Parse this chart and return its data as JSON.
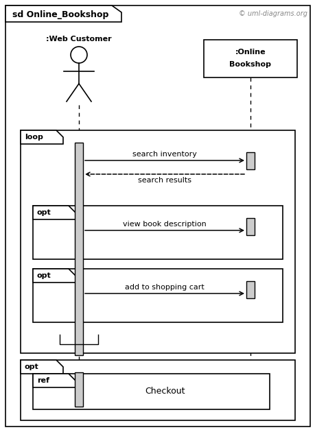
{
  "title": "sd Online_Bookshop",
  "copyright": "© uml-diagrams.org",
  "bg_color": "#ffffff",
  "actor1_label": ":Web Customer",
  "actor2_label_line1": ":Online",
  "actor2_label_line2": "Bookshop",
  "msg1_label": "search inventory",
  "msg2_label": "search results",
  "msg3_label": "view book description",
  "msg4_label": "add to shopping cart",
  "ref_label": "Checkout"
}
